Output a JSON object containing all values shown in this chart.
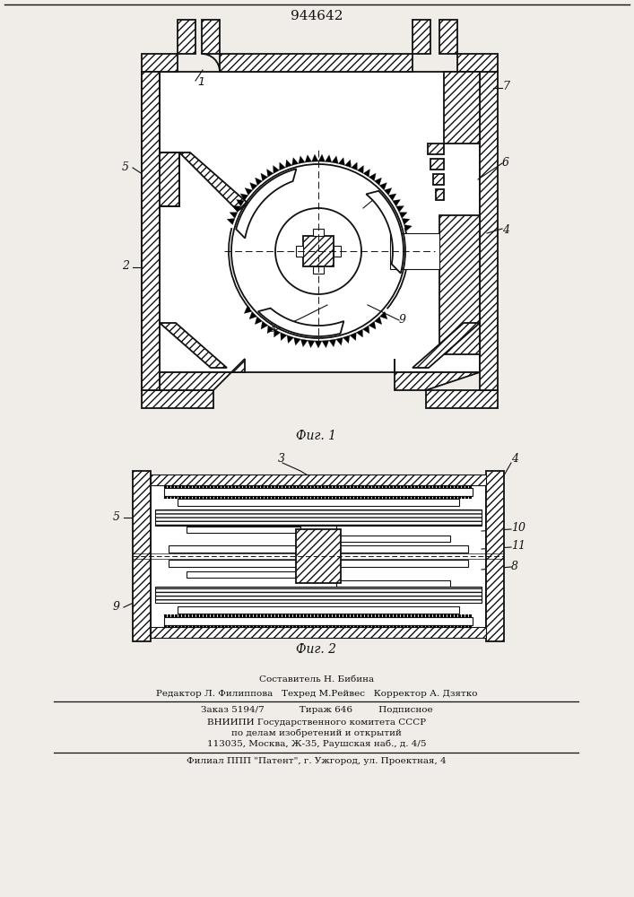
{
  "title": "944642",
  "fig1_caption": "Фиг. 1",
  "fig2_caption": "Фиг. 2",
  "footer_line1": "Составитель Н. Бибина",
  "footer_line2": "Редактор Л. Филиппова   Техред М.Рейвес   Корректор А. Дзятко",
  "footer_line3": "Заказ 5194/7            Тираж 646         Подписное",
  "footer_line4": "ВНИИПИ Государственного комитета СССР",
  "footer_line5": "по делам изобретений и открытий",
  "footer_line6": "113035, Москва, Ж-35, Раушская наб., д. 4/5",
  "footer_line7": "Филиал ППП \"Патент\", г. Ужгород, ул. Проектная, 4",
  "bg_color": "#f0ede8",
  "line_color": "#111111"
}
